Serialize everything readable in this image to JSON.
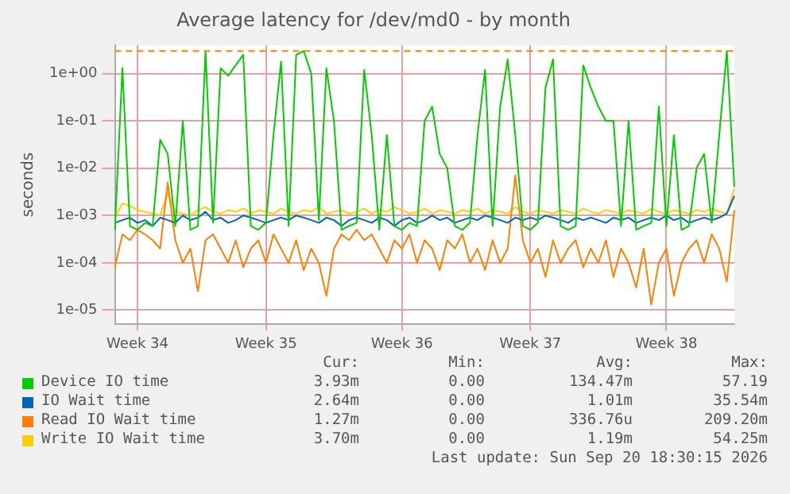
{
  "chart_data": {
    "type": "line",
    "title": "Average latency for /dev/md0 - by month",
    "ylabel": "seconds",
    "log": "y",
    "grid": true,
    "legend": "bottom",
    "marker": "none",
    "line_style": "solid",
    "ylim": [
      5e-06,
      4
    ],
    "yticks": [
      {
        "value": 1e-05,
        "label": "1e-05"
      },
      {
        "value": 0.0001,
        "label": "1e-04"
      },
      {
        "value": 0.001,
        "label": "1e-03"
      },
      {
        "value": 0.01,
        "label": "1e-02"
      },
      {
        "value": 0.1,
        "label": "1e-01"
      },
      {
        "value": 1,
        "label": "1e+00"
      }
    ],
    "categories": [
      null,
      null,
      null,
      "Week 34",
      null,
      null,
      null,
      null,
      null,
      null,
      null,
      null,
      null,
      null,
      null,
      null,
      null,
      null,
      null,
      null,
      "Week 35",
      null,
      null,
      null,
      null,
      null,
      null,
      null,
      null,
      null,
      null,
      null,
      null,
      null,
      null,
      null,
      null,
      null,
      "Week 36",
      null,
      null,
      null,
      null,
      null,
      null,
      null,
      null,
      null,
      null,
      null,
      null,
      null,
      null,
      null,
      null,
      "Week 37",
      null,
      null,
      null,
      null,
      null,
      null,
      null,
      null,
      null,
      null,
      null,
      null,
      null,
      null,
      null,
      null,
      null,
      "Week 38",
      null,
      null,
      null,
      null,
      null,
      null,
      null,
      null,
      null
    ],
    "series": [
      {
        "name": "Device IO time",
        "color": "#00cc00",
        "values": [
          0.0005,
          1.3,
          0.0006,
          0.0005,
          0.0007,
          0.0006,
          0.04,
          0.02,
          0.0006,
          0.1,
          0.0005,
          0.0006,
          3,
          0.0007,
          1.3,
          0.9,
          1.5,
          2.5,
          0.0006,
          0.0005,
          0.0007,
          0.05,
          1.8,
          0.0006,
          2.5,
          3,
          1,
          0.0008,
          1.3,
          0.1,
          0.0005,
          0.0006,
          0.0007,
          1.2,
          0.05,
          0.0005,
          0.05,
          0.0006,
          0.0005,
          0.0007,
          0.0006,
          0.1,
          0.2,
          0.02,
          0.01,
          0.0006,
          0.0005,
          0.0007,
          0.05,
          1.2,
          0.0006,
          0.2,
          2,
          0.05,
          0.0006,
          0.0005,
          0.0007,
          0.5,
          2,
          0.0006,
          0.0005,
          0.0006,
          1.5,
          0.5,
          0.2,
          0.1,
          0.1,
          0.0006,
          0.1,
          0.0005,
          0.0006,
          0.0007,
          0.2,
          0.0006,
          0.05,
          0.0005,
          0.0006,
          0.01,
          0.02,
          0.0007,
          0.05,
          3,
          0.004
        ]
      },
      {
        "name": "IO Wait time",
        "color": "#0066b3",
        "values": [
          0.0007,
          0.0008,
          0.0009,
          0.0007,
          0.0008,
          0.0006,
          0.0009,
          0.0008,
          0.0007,
          0.001,
          0.0008,
          0.0009,
          0.0012,
          0.0008,
          0.0009,
          0.0007,
          0.0008,
          0.001,
          0.0009,
          0.0008,
          0.0007,
          0.0008,
          0.0009,
          0.0008,
          0.001,
          0.0009,
          0.0008,
          0.0007,
          0.0009,
          0.0008,
          0.0006,
          0.0008,
          0.0009,
          0.0008,
          0.0007,
          0.0009,
          0.0008,
          0.0006,
          0.0008,
          0.0009,
          0.0007,
          0.0008,
          0.001,
          0.0008,
          0.0009,
          0.0007,
          0.0008,
          0.0009,
          0.0008,
          0.001,
          0.0009,
          0.0008,
          0.0007,
          0.0009,
          0.0008,
          0.0009,
          0.0008,
          0.001,
          0.0009,
          0.0008,
          0.0007,
          0.0009,
          0.0008,
          0.0009,
          0.0008,
          0.0007,
          0.0009,
          0.0008,
          0.0009,
          0.0007,
          0.0008,
          0.0009,
          0.0008,
          0.001,
          0.0008,
          0.0009,
          0.0007,
          0.0008,
          0.0009,
          0.0008,
          0.0009,
          0.0011,
          0.0026
        ]
      },
      {
        "name": "Read IO Wait time",
        "color": "#ff8000",
        "values": [
          8e-05,
          0.0004,
          0.0003,
          0.0005,
          0.0004,
          0.0003,
          0.0002,
          0.005,
          0.0003,
          0.0001,
          0.0002,
          2.5e-05,
          0.0003,
          0.0004,
          0.0002,
          0.0001,
          0.0003,
          8e-05,
          0.0002,
          0.0003,
          0.0001,
          0.0004,
          0.0002,
          0.0001,
          0.0003,
          7e-05,
          0.0002,
          0.0001,
          2e-05,
          0.0002,
          0.0004,
          0.0003,
          0.0005,
          0.0003,
          0.0004,
          0.0002,
          0.0001,
          0.0003,
          0.0002,
          0.0004,
          0.0001,
          0.0003,
          0.0002,
          7e-05,
          0.0003,
          0.0002,
          0.0004,
          0.0001,
          0.0002,
          7e-05,
          0.0003,
          0.0001,
          0.0002,
          0.007,
          0.0003,
          0.0001,
          0.0002,
          5e-05,
          0.0003,
          0.0001,
          0.0002,
          0.0003,
          8e-05,
          0.0002,
          0.0001,
          0.0003,
          5e-05,
          0.0002,
          0.0001,
          3e-05,
          0.0002,
          1.3e-05,
          0.0001,
          0.0002,
          2e-05,
          0.0001,
          0.0002,
          0.0003,
          0.0001,
          0.0004,
          0.0002,
          4e-05,
          0.0013
        ]
      },
      {
        "name": "Write IO Wait time",
        "color": "#ffcc00",
        "values": [
          0.0009,
          0.0018,
          0.0016,
          0.0013,
          0.0012,
          0.0011,
          0.001,
          0.003,
          0.0012,
          0.0011,
          0.001,
          0.0013,
          0.0015,
          0.0012,
          0.0011,
          0.0013,
          0.0012,
          0.0014,
          0.0011,
          0.0013,
          0.0012,
          0.0011,
          0.0014,
          0.0012,
          0.0011,
          0.0013,
          0.0012,
          0.0015,
          0.0011,
          0.0012,
          0.0013,
          0.0011,
          0.0012,
          0.0014,
          0.0011,
          0.0013,
          0.0012,
          0.0015,
          0.0013,
          0.0011,
          0.0012,
          0.0014,
          0.0011,
          0.0013,
          0.0012,
          0.0011,
          0.0013,
          0.0012,
          0.0014,
          0.0011,
          0.0013,
          0.0012,
          0.0011,
          0.0015,
          0.0012,
          0.0011,
          0.0013,
          0.0012,
          0.0011,
          0.0013,
          0.0012,
          0.0011,
          0.0014,
          0.0012,
          0.0011,
          0.0013,
          0.0012,
          0.0011,
          0.0013,
          0.0012,
          0.0011,
          0.0014,
          0.0012,
          0.0011,
          0.0013,
          0.0012,
          0.0011,
          0.0013,
          0.0012,
          0.0014,
          0.0012,
          0.0011,
          0.0037
        ]
      }
    ],
    "ref_lines": [
      {
        "axis": "y",
        "value": 3,
        "color": "#ff8000",
        "line_style": "dashed"
      }
    ],
    "annotations": [
      "Cur:",
      "Min:",
      "Avg:",
      "Max:",
      "3.93m",
      "0.00",
      "134.47m",
      "57.19",
      "2.64m",
      "0.00",
      "1.01m",
      "35.54m",
      "1.27m",
      "0.00",
      "336.76u",
      "209.20m",
      "3.70m",
      "0.00",
      "1.19m",
      "54.25m",
      "Last update: Sun Sep 20 18:30:15 2026"
    ]
  }
}
